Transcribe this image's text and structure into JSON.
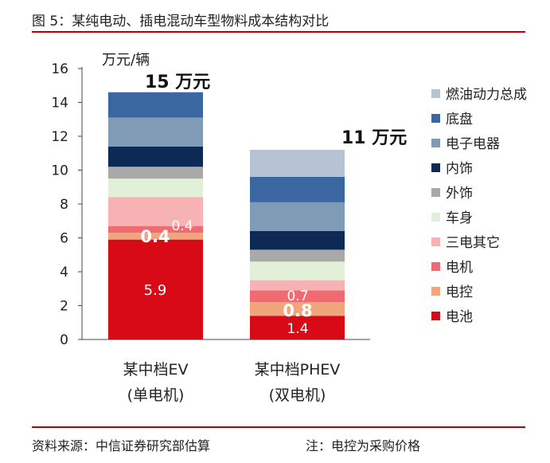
{
  "figure": {
    "title": "图 5：某纯电动、插电混动车型物料成本结构对比",
    "source": "资料来源：中信证券研究部估算",
    "note": "注：电控为采购价格"
  },
  "chart_data": {
    "type": "bar",
    "stacked": true,
    "title": "",
    "ylabel": "万元/辆",
    "ylim": [
      0,
      16
    ],
    "yticks": [
      0,
      2,
      4,
      6,
      8,
      10,
      12,
      14,
      16
    ],
    "grid": false,
    "legend_position": "right",
    "categories": [
      {
        "line1": "某中档EV",
        "line2": "(单电机)",
        "total_label": "15 万元"
      },
      {
        "line1": "某中档PHEV",
        "line2": "(双电机)",
        "total_label": "11 万元"
      }
    ],
    "series": [
      {
        "name": "电池",
        "color": "#d70a16",
        "values": [
          5.9,
          1.4
        ],
        "labels": [
          "5.9",
          "1.4"
        ]
      },
      {
        "name": "电控",
        "color": "#f0a57d",
        "values": [
          0.4,
          0.8
        ],
        "labels": [
          "0.4",
          "0.8"
        ]
      },
      {
        "name": "电机",
        "color": "#f06a72",
        "values": [
          0.4,
          0.7
        ],
        "labels": [
          "0.4",
          "0.7"
        ]
      },
      {
        "name": "三电其它",
        "color": "#f7b3b4",
        "values": [
          1.7,
          0.6
        ],
        "labels": [
          "",
          ""
        ]
      },
      {
        "name": "车身",
        "color": "#e2efd9",
        "values": [
          1.1,
          1.1
        ],
        "labels": [
          "",
          ""
        ]
      },
      {
        "name": "外饰",
        "color": "#a9a9a9",
        "values": [
          0.7,
          0.7
        ],
        "labels": [
          "",
          ""
        ]
      },
      {
        "name": "内饰",
        "color": "#0c2a55",
        "values": [
          1.2,
          1.1
        ],
        "labels": [
          "",
          ""
        ]
      },
      {
        "name": "电子电器",
        "color": "#7f9bb6",
        "values": [
          1.7,
          1.7
        ],
        "labels": [
          "",
          ""
        ]
      },
      {
        "name": "底盘",
        "color": "#3a67a0",
        "values": [
          1.5,
          1.5
        ],
        "labels": [
          "",
          ""
        ]
      },
      {
        "name": "燃油动力总成",
        "color": "#b7c3d4",
        "values": [
          0.0,
          1.6
        ],
        "labels": [
          "",
          ""
        ]
      }
    ]
  }
}
